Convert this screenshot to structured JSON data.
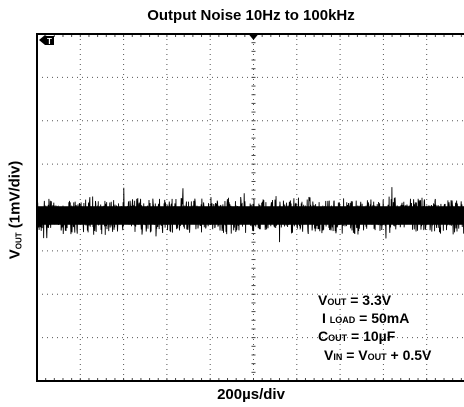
{
  "chart_data": {
    "type": "line",
    "title": "Output Noise 10Hz to 100kHz",
    "xlabel": "200µs/div",
    "ylabel": "V_OUT (1mV/div)",
    "ylabel_parts": {
      "v": "V",
      "sub": "OUT",
      "rest": " (1mV/div)"
    },
    "x_divisions": 10,
    "y_divisions": 8,
    "grid": true,
    "trigger_marker": "T",
    "series": [
      {
        "center_div": 4.0,
        "peak_to_peak_div": 0.95,
        "description_free": true
      }
    ],
    "annotations": [
      {
        "pre": "V",
        "sub": "OUT",
        "post": " = 3.3V"
      },
      {
        "pre": "I ",
        "sub": "LOAD",
        "post": " = 50mA"
      },
      {
        "pre": "C",
        "sub": "OUT",
        "post": " = 10µF"
      },
      {
        "pre": "V",
        "sub": "IN",
        "post": "  = V",
        "sub2": "OUT",
        "post2": " + 0.5V"
      }
    ]
  }
}
